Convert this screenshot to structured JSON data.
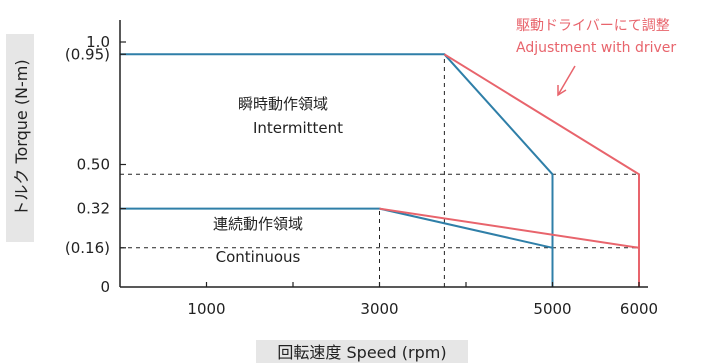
{
  "chart_data": {
    "type": "line",
    "xlabel": "回転速度 Speed (rpm)",
    "ylabel": "トルク Torque (N-m)",
    "xlim": [
      0,
      6300
    ],
    "ylim": [
      0,
      1.0
    ],
    "x_ticks": [
      {
        "value": 1000,
        "label": "1000"
      },
      {
        "value": 3000,
        "label": "3000"
      },
      {
        "value": 5000,
        "label": "5000"
      },
      {
        "value": 6000,
        "label": "6000"
      }
    ],
    "x_minor_ticks": [
      2000,
      4000
    ],
    "y_ticks": [
      {
        "value": 0,
        "label": "0"
      },
      {
        "value": 0.16,
        "label": "(0.16)"
      },
      {
        "value": 0.32,
        "label": "0.32"
      },
      {
        "value": 0.5,
        "label": "0.50"
      },
      {
        "value": 0.95,
        "label": "(0.95)"
      },
      {
        "value": 1.0,
        "label": "1.0"
      }
    ],
    "series": [
      {
        "color": "#2f7fa8",
        "x": [
          0,
          3750,
          5000,
          5000
        ],
        "y": [
          0.95,
          0.95,
          0.46,
          0
        ]
      },
      {
        "color": "#2f7fa8",
        "x": [
          0,
          3000,
          5000
        ],
        "y": [
          0.32,
          0.32,
          0.16
        ]
      },
      {
        "color": "#e8646c",
        "x": [
          3750,
          6000,
          6000
        ],
        "y": [
          0.95,
          0.46,
          0
        ]
      },
      {
        "color": "#e8646c",
        "x": [
          3000,
          6000
        ],
        "y": [
          0.32,
          0.16
        ]
      }
    ],
    "reference_lines": [
      {
        "orientation": "horizontal",
        "value": 0.46,
        "from": 0,
        "to": 6000
      },
      {
        "orientation": "horizontal",
        "value": 0.16,
        "from": 0,
        "to": 6000
      },
      {
        "orientation": "vertical",
        "value": 3000,
        "from": 0,
        "to": 0.32
      },
      {
        "orientation": "vertical",
        "value": 3750,
        "from": 0,
        "to": 0.95
      }
    ],
    "regions": [
      {
        "name": "intermittent",
        "label_ja": "瞬時動作領域",
        "label_en": "Intermittent"
      },
      {
        "name": "continuous",
        "label_ja": "連続動作領域",
        "label_en": "Continuous"
      }
    ],
    "annotation": {
      "text_ja": "駆動ドライバーにて調整",
      "text_en": "Adjustment with driver",
      "color": "#e8646c"
    }
  }
}
